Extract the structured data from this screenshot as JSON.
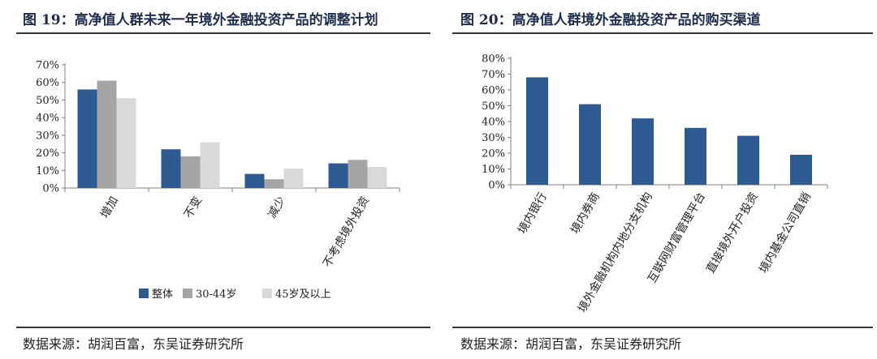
{
  "left_panel": {
    "title": "图 19：高净值人群未来一年境外金融投资产品的调整计划",
    "source": "数据来源：胡润百富，东吴证券研究所"
  },
  "right_panel": {
    "title": "图 20：高净值人群境外金融投资产品的购买渠道",
    "source": "数据来源：胡润百富，东吴证券研究所"
  },
  "colors": {
    "dark_blue": "#2e5a92",
    "mid_gray": "#a5a5a5",
    "light_gray": "#d9d9d9",
    "axis": "#808080"
  },
  "chart_data": [
    {
      "type": "bar",
      "title": "",
      "categories": [
        "增加",
        "不变",
        "减少",
        "不考虑境外投资"
      ],
      "series": [
        {
          "name": "整体",
          "color": "#2e5a92",
          "values": [
            56,
            22,
            8,
            14
          ]
        },
        {
          "name": "30-44岁",
          "color": "#a5a5a5",
          "values": [
            61,
            18,
            5,
            16
          ]
        },
        {
          "name": "45岁及以上",
          "color": "#d9d9d9",
          "values": [
            51,
            26,
            11,
            12
          ]
        }
      ],
      "ylim": [
        0,
        70
      ],
      "yticks": [
        "0%",
        "10%",
        "20%",
        "30%",
        "40%",
        "50%",
        "60%",
        "70%"
      ],
      "legend": "bottom",
      "grid": false
    },
    {
      "type": "bar",
      "title": "",
      "categories": [
        "境内银行",
        "境内券商",
        "境外金融机构内地分支机构",
        "互联网财富管理平台",
        "直接境外开户投资",
        "境内基金公司直销"
      ],
      "values": [
        68,
        51,
        42,
        36,
        31,
        19
      ],
      "color": "#2e5a92",
      "ylim": [
        0,
        80
      ],
      "yticks": [
        "0%",
        "10%",
        "20%",
        "30%",
        "40%",
        "50%",
        "60%",
        "70%",
        "80%"
      ],
      "grid": false
    }
  ]
}
